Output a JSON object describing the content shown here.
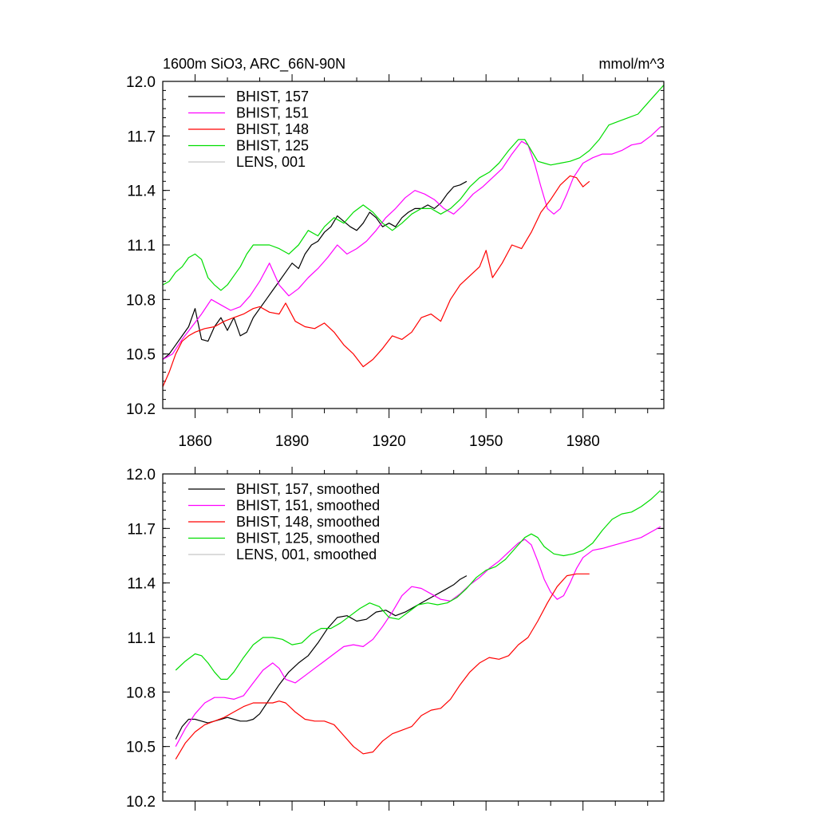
{
  "chart_data": [
    {
      "type": "line",
      "title": "1600m SiO3, ARC_66N-90N",
      "units": "mmol/m^3",
      "xlim": [
        1850,
        2005
      ],
      "ylim": [
        10.2,
        12.0
      ],
      "xticks": [
        1860,
        1890,
        1920,
        1950,
        1980
      ],
      "yticks": [
        10.2,
        10.5,
        10.8,
        11.1,
        11.4,
        11.7,
        12.0
      ],
      "ytick_labels": [
        "10.2",
        "10.5",
        "10.8",
        "11.1",
        "11.4",
        "11.7",
        "12.0"
      ],
      "xtick_labels": [
        "1860",
        "1890",
        "1920",
        "1950",
        "1980"
      ],
      "legend_position": "top-left",
      "series": [
        {
          "name": "BHIST, 157",
          "color": "#000000",
          "x": [
            1850,
            1852,
            1854,
            1856,
            1858,
            1860,
            1862,
            1864,
            1866,
            1868,
            1870,
            1872,
            1874,
            1876,
            1878,
            1880,
            1882,
            1884,
            1886,
            1888,
            1890,
            1892,
            1894,
            1896,
            1898,
            1900,
            1902,
            1904,
            1906,
            1908,
            1910,
            1912,
            1914,
            1916,
            1918,
            1920,
            1922,
            1924,
            1926,
            1928,
            1930,
            1932,
            1934,
            1936,
            1938,
            1940,
            1942,
            1944
          ],
          "y": [
            10.47,
            10.5,
            10.55,
            10.6,
            10.65,
            10.75,
            10.58,
            10.57,
            10.65,
            10.7,
            10.63,
            10.7,
            10.6,
            10.62,
            10.7,
            10.75,
            10.8,
            10.85,
            10.9,
            10.95,
            11.0,
            10.97,
            11.05,
            11.1,
            11.12,
            11.17,
            11.2,
            11.26,
            11.23,
            11.2,
            11.18,
            11.22,
            11.28,
            11.25,
            11.2,
            11.22,
            11.2,
            11.25,
            11.28,
            11.3,
            11.3,
            11.32,
            11.3,
            11.33,
            11.38,
            11.42,
            11.43,
            11.45
          ]
        },
        {
          "name": "BHIST, 151",
          "color": "#ff00ff",
          "x": [
            1850,
            1853,
            1856,
            1859,
            1862,
            1865,
            1868,
            1871,
            1874,
            1877,
            1880,
            1883,
            1886,
            1889,
            1892,
            1895,
            1898,
            1901,
            1904,
            1907,
            1910,
            1913,
            1916,
            1919,
            1922,
            1925,
            1928,
            1931,
            1934,
            1937,
            1940,
            1943,
            1946,
            1949,
            1952,
            1955,
            1958,
            1961,
            1963,
            1965,
            1967,
            1969,
            1971,
            1973,
            1975,
            1977,
            1980,
            1983,
            1986,
            1989,
            1992,
            1995,
            1998,
            2001,
            2004
          ],
          "y": [
            10.47,
            10.5,
            10.58,
            10.65,
            10.72,
            10.8,
            10.77,
            10.74,
            10.76,
            10.82,
            10.9,
            11.0,
            10.88,
            10.82,
            10.86,
            10.92,
            10.97,
            11.03,
            11.1,
            11.05,
            11.08,
            11.12,
            11.18,
            11.25,
            11.3,
            11.36,
            11.4,
            11.38,
            11.35,
            11.3,
            11.27,
            11.32,
            11.38,
            11.42,
            11.47,
            11.52,
            11.6,
            11.67,
            11.65,
            11.55,
            11.42,
            11.3,
            11.27,
            11.3,
            11.38,
            11.47,
            11.55,
            11.58,
            11.6,
            11.6,
            11.62,
            11.65,
            11.66,
            11.7,
            11.75
          ]
        },
        {
          "name": "BHIST, 148",
          "color": "#ff0000",
          "x": [
            1850,
            1852,
            1854,
            1856,
            1858,
            1860,
            1863,
            1866,
            1869,
            1872,
            1875,
            1878,
            1880,
            1883,
            1886,
            1888,
            1891,
            1894,
            1897,
            1900,
            1903,
            1906,
            1909,
            1912,
            1915,
            1918,
            1921,
            1924,
            1927,
            1930,
            1933,
            1936,
            1939,
            1942,
            1945,
            1948,
            1950,
            1952,
            1955,
            1958,
            1961,
            1964,
            1967,
            1970,
            1973,
            1976,
            1978,
            1980,
            1982
          ],
          "y": [
            10.32,
            10.4,
            10.5,
            10.57,
            10.6,
            10.62,
            10.64,
            10.65,
            10.68,
            10.7,
            10.72,
            10.75,
            10.76,
            10.73,
            10.72,
            10.78,
            10.68,
            10.65,
            10.64,
            10.67,
            10.62,
            10.55,
            10.5,
            10.43,
            10.47,
            10.53,
            10.6,
            10.58,
            10.62,
            10.7,
            10.72,
            10.68,
            10.8,
            10.88,
            10.93,
            10.98,
            11.07,
            10.92,
            11.0,
            11.1,
            11.08,
            11.17,
            11.28,
            11.35,
            11.43,
            11.48,
            11.47,
            11.42,
            11.45
          ]
        },
        {
          "name": "BHIST, 125",
          "color": "#00dd00",
          "x": [
            1850,
            1852,
            1854,
            1856,
            1858,
            1860,
            1862,
            1864,
            1866,
            1868,
            1870,
            1872,
            1874,
            1876,
            1878,
            1880,
            1883,
            1886,
            1889,
            1892,
            1895,
            1898,
            1900,
            1903,
            1906,
            1909,
            1912,
            1915,
            1918,
            1921,
            1924,
            1927,
            1930,
            1933,
            1936,
            1939,
            1942,
            1945,
            1948,
            1951,
            1954,
            1957,
            1960,
            1962,
            1964,
            1966,
            1968,
            1970,
            1973,
            1976,
            1979,
            1982,
            1985,
            1988,
            1991,
            1994,
            1997,
            2000,
            2002,
            2005
          ],
          "y": [
            10.88,
            10.9,
            10.95,
            10.98,
            11.03,
            11.05,
            11.02,
            10.92,
            10.88,
            10.85,
            10.88,
            10.93,
            10.98,
            11.05,
            11.1,
            11.1,
            11.1,
            11.08,
            11.05,
            11.1,
            11.18,
            11.15,
            11.2,
            11.25,
            11.22,
            11.28,
            11.32,
            11.28,
            11.22,
            11.18,
            11.22,
            11.27,
            11.3,
            11.3,
            11.27,
            11.3,
            11.35,
            11.42,
            11.47,
            11.5,
            11.55,
            11.62,
            11.68,
            11.68,
            11.62,
            11.56,
            11.55,
            11.54,
            11.55,
            11.56,
            11.58,
            11.62,
            11.68,
            11.76,
            11.78,
            11.8,
            11.82,
            11.88,
            11.92,
            11.98
          ]
        },
        {
          "name": "LENS, 001",
          "color": "#c8c8c8",
          "x": [],
          "y": []
        }
      ]
    },
    {
      "type": "line",
      "xlim": [
        1850,
        2005
      ],
      "ylim": [
        10.2,
        12.0
      ],
      "yticks": [
        10.2,
        10.5,
        10.8,
        11.1,
        11.4,
        11.7,
        12.0
      ],
      "ytick_labels": [
        "10.2",
        "10.5",
        "10.8",
        "11.1",
        "11.4",
        "11.7",
        "12.0"
      ],
      "legend_position": "top-left",
      "series": [
        {
          "name": "BHIST, 157, smoothed",
          "color": "#000000",
          "x": [
            1854,
            1856,
            1858,
            1860,
            1862,
            1864,
            1866,
            1868,
            1870,
            1872,
            1874,
            1876,
            1878,
            1880,
            1883,
            1886,
            1889,
            1892,
            1895,
            1898,
            1901,
            1904,
            1907,
            1910,
            1913,
            1916,
            1919,
            1922,
            1925,
            1928,
            1931,
            1934,
            1937,
            1940,
            1942,
            1944
          ],
          "y": [
            10.54,
            10.61,
            10.65,
            10.65,
            10.64,
            10.63,
            10.64,
            10.65,
            10.66,
            10.65,
            10.64,
            10.64,
            10.65,
            10.68,
            10.76,
            10.84,
            10.91,
            10.96,
            11.0,
            11.07,
            11.15,
            11.21,
            11.22,
            11.19,
            11.2,
            11.24,
            11.25,
            11.22,
            11.24,
            11.27,
            11.3,
            11.33,
            11.36,
            11.39,
            11.42,
            11.44
          ]
        },
        {
          "name": "BHIST, 151, smoothed",
          "color": "#ff00ff",
          "x": [
            1854,
            1857,
            1860,
            1863,
            1866,
            1869,
            1872,
            1875,
            1878,
            1881,
            1884,
            1886,
            1888,
            1891,
            1894,
            1897,
            1900,
            1903,
            1906,
            1909,
            1912,
            1915,
            1918,
            1921,
            1924,
            1927,
            1930,
            1933,
            1936,
            1939,
            1942,
            1945,
            1948,
            1951,
            1954,
            1957,
            1960,
            1962,
            1964,
            1966,
            1968,
            1970,
            1972,
            1974,
            1976,
            1978,
            1980,
            1983,
            1986,
            1990,
            1994,
            1998,
            2002,
            2004
          ],
          "y": [
            10.5,
            10.6,
            10.68,
            10.74,
            10.77,
            10.77,
            10.76,
            10.78,
            10.85,
            10.92,
            10.96,
            10.93,
            10.87,
            10.85,
            10.89,
            10.93,
            10.97,
            11.01,
            11.05,
            11.06,
            11.05,
            11.09,
            11.16,
            11.24,
            11.33,
            11.38,
            11.37,
            11.34,
            11.31,
            11.3,
            11.34,
            11.39,
            11.43,
            11.48,
            11.52,
            11.57,
            11.62,
            11.64,
            11.61,
            11.52,
            11.42,
            11.35,
            11.31,
            11.33,
            11.4,
            11.48,
            11.54,
            11.58,
            11.59,
            11.61,
            11.63,
            11.65,
            11.69,
            11.71
          ]
        },
        {
          "name": "BHIST, 148, smoothed",
          "color": "#ff0000",
          "x": [
            1854,
            1857,
            1860,
            1863,
            1866,
            1869,
            1872,
            1875,
            1878,
            1881,
            1884,
            1886,
            1888,
            1891,
            1894,
            1897,
            1900,
            1903,
            1906,
            1909,
            1912,
            1915,
            1918,
            1921,
            1924,
            1927,
            1930,
            1933,
            1936,
            1939,
            1942,
            1945,
            1948,
            1951,
            1954,
            1957,
            1960,
            1963,
            1966,
            1969,
            1972,
            1975,
            1978,
            1980,
            1982
          ],
          "y": [
            10.43,
            10.52,
            10.58,
            10.62,
            10.64,
            10.66,
            10.69,
            10.72,
            10.74,
            10.74,
            10.74,
            10.75,
            10.74,
            10.69,
            10.65,
            10.64,
            10.64,
            10.62,
            10.56,
            10.5,
            10.46,
            10.47,
            10.53,
            10.57,
            10.59,
            10.61,
            10.67,
            10.7,
            10.71,
            10.76,
            10.84,
            10.91,
            10.96,
            10.99,
            10.98,
            11.0,
            11.06,
            11.1,
            11.19,
            11.29,
            11.38,
            11.44,
            11.45,
            11.45,
            11.45
          ]
        },
        {
          "name": "BHIST, 125, smoothed",
          "color": "#00dd00",
          "x": [
            1854,
            1857,
            1860,
            1862,
            1864,
            1866,
            1868,
            1870,
            1872,
            1875,
            1878,
            1881,
            1884,
            1887,
            1890,
            1893,
            1896,
            1899,
            1902,
            1905,
            1908,
            1911,
            1914,
            1917,
            1920,
            1923,
            1926,
            1929,
            1932,
            1935,
            1938,
            1941,
            1944,
            1947,
            1950,
            1953,
            1956,
            1959,
            1962,
            1964,
            1966,
            1968,
            1971,
            1974,
            1977,
            1980,
            1983,
            1986,
            1989,
            1992,
            1995,
            1998,
            2001,
            2004
          ],
          "y": [
            10.92,
            10.97,
            11.01,
            11.0,
            10.96,
            10.91,
            10.87,
            10.87,
            10.91,
            10.99,
            11.06,
            11.1,
            11.1,
            11.09,
            11.06,
            11.07,
            11.12,
            11.15,
            11.15,
            11.18,
            11.22,
            11.26,
            11.29,
            11.27,
            11.21,
            11.2,
            11.24,
            11.28,
            11.29,
            11.28,
            11.29,
            11.32,
            11.37,
            11.43,
            11.47,
            11.49,
            11.53,
            11.59,
            11.65,
            11.67,
            11.65,
            11.6,
            11.56,
            11.55,
            11.56,
            11.58,
            11.62,
            11.69,
            11.75,
            11.78,
            11.79,
            11.82,
            11.86,
            11.91
          ]
        },
        {
          "name": "LENS, 001, smoothed",
          "color": "#c8c8c8",
          "x": [],
          "y": []
        }
      ]
    }
  ]
}
